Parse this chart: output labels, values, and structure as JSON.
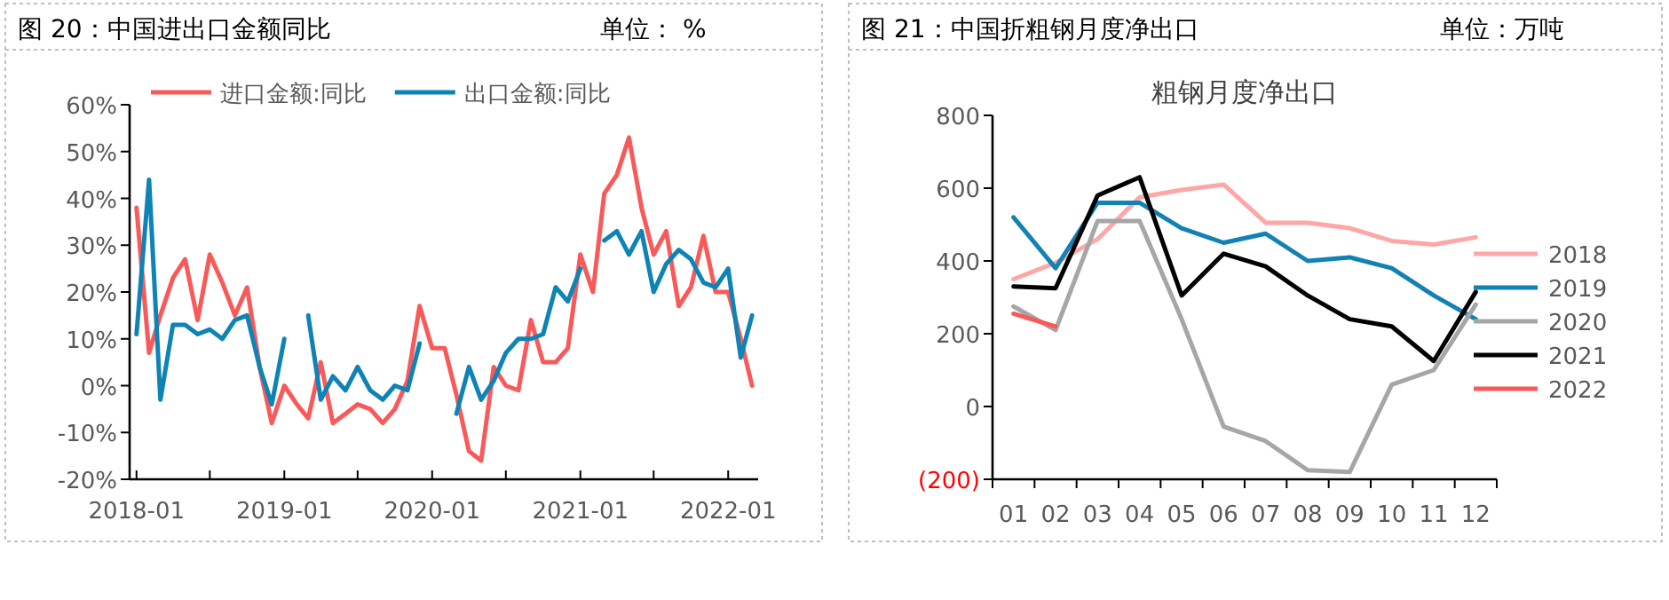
{
  "chart_data": [
    {
      "type": "line",
      "title": "图 20：中国进出口金额同比",
      "subtitle": "单位： %",
      "legend": "top",
      "grid": false,
      "x": [
        "2018-01",
        "2018-02",
        "2018-03",
        "2018-04",
        "2018-05",
        "2018-06",
        "2018-07",
        "2018-08",
        "2018-09",
        "2018-10",
        "2018-11",
        "2018-12",
        "2019-01",
        "2019-02",
        "2019-03",
        "2019-04",
        "2019-05",
        "2019-06",
        "2019-07",
        "2019-08",
        "2019-09",
        "2019-10",
        "2019-11",
        "2019-12",
        "2020-01",
        "2020-02",
        "2020-03",
        "2020-04",
        "2020-05",
        "2020-06",
        "2020-07",
        "2020-08",
        "2020-09",
        "2020-10",
        "2020-11",
        "2020-12",
        "2021-01",
        "2021-02",
        "2021-03",
        "2021-04",
        "2021-05",
        "2021-06",
        "2021-07",
        "2021-08",
        "2021-09",
        "2021-10",
        "2021-11",
        "2021-12",
        "2022-01",
        "2022-02",
        "2022-03"
      ],
      "series": [
        {
          "name": "进口金额:同比",
          "color": "#f85a5a",
          "values": [
            38,
            7,
            15,
            23,
            27,
            14,
            28,
            22,
            15,
            21,
            4,
            -8,
            0,
            -4,
            -7,
            5,
            -8,
            -6,
            -4,
            -5,
            -8,
            -5,
            1,
            17,
            8,
            8,
            -2,
            -14,
            -16,
            4,
            0,
            -1,
            14,
            5,
            5,
            8,
            28,
            20,
            41,
            45,
            53,
            38,
            28,
            33,
            17,
            21,
            32,
            20,
            20,
            10,
            0
          ]
        },
        {
          "name": "出口金额:同比",
          "color": "#0e83b5",
          "values": [
            11,
            44,
            -3,
            13,
            13,
            11,
            12,
            10,
            14,
            15,
            4,
            -4,
            10,
            null,
            15,
            -3,
            2,
            -1,
            4,
            -1,
            -3,
            0,
            -1,
            9,
            null,
            null,
            -6,
            4,
            -3,
            1,
            7,
            10,
            10,
            11,
            21,
            18,
            25,
            null,
            31,
            33,
            28,
            33,
            20,
            26,
            29,
            27,
            22,
            21,
            25,
            6,
            15
          ]
        }
      ],
      "xlim": [
        "2017-12-15",
        "2022-03-16"
      ],
      "xticks": [
        "2018-01",
        {
          "value": "2018-07",
          "label": null
        },
        "2019-01",
        {
          "value": "2019-07",
          "label": null
        },
        "2020-01",
        {
          "value": "2020-07",
          "label": null
        },
        "2021-01",
        {
          "value": "2021-07",
          "label": null
        },
        "2022-01"
      ],
      "ylim": [
        -20,
        60
      ],
      "yticks": [
        {
          "value": -20,
          "label": "-20%"
        },
        {
          "value": -10,
          "label": "-10%"
        },
        {
          "value": 0,
          "label": "0%"
        },
        {
          "value": 10,
          "label": "10%"
        },
        {
          "value": 20,
          "label": "20%"
        },
        {
          "value": 30,
          "label": "30%"
        },
        {
          "value": 40,
          "label": "40%"
        },
        {
          "value": 50,
          "label": "50%"
        },
        {
          "value": 60,
          "label": "60%"
        }
      ]
    },
    {
      "type": "line",
      "title": "图 21：中国折粗钢月度净出口",
      "subtitle": "单位：万吨",
      "legend": "right",
      "grid": false,
      "annotations": [
        "粗钢月度净出口"
      ],
      "categories": [
        "01",
        "02",
        "03",
        "04",
        "05",
        "06",
        "07",
        "08",
        "09",
        "10",
        "11",
        "12"
      ],
      "series": [
        {
          "name": "2018",
          "color": "#ffa6a6",
          "values": [
            350,
            395,
            460,
            575,
            595,
            610,
            505,
            505,
            490,
            455,
            445,
            465
          ]
        },
        {
          "name": "2019",
          "color": "#1282b4",
          "values": [
            520,
            380,
            560,
            560,
            490,
            450,
            475,
            400,
            410,
            380,
            305,
            240
          ]
        },
        {
          "name": "2020",
          "color": "#a6a6a6",
          "values": [
            275,
            210,
            510,
            510,
            240,
            -55,
            -95,
            -175,
            -180,
            60,
            100,
            280
          ]
        },
        {
          "name": "2021",
          "color": "#000000",
          "values": [
            330,
            325,
            580,
            630,
            305,
            420,
            385,
            305,
            240,
            220,
            125,
            315
          ]
        },
        {
          "name": "2022",
          "color": "#f85a5a",
          "values": [
            255,
            220,
            null,
            null,
            null,
            null,
            null,
            null,
            null,
            null,
            null,
            null
          ]
        }
      ],
      "ylim": [
        -200,
        800
      ],
      "yticks": [
        {
          "value": -200,
          "label": "(200)"
        },
        0,
        200,
        400,
        600,
        800
      ]
    }
  ]
}
